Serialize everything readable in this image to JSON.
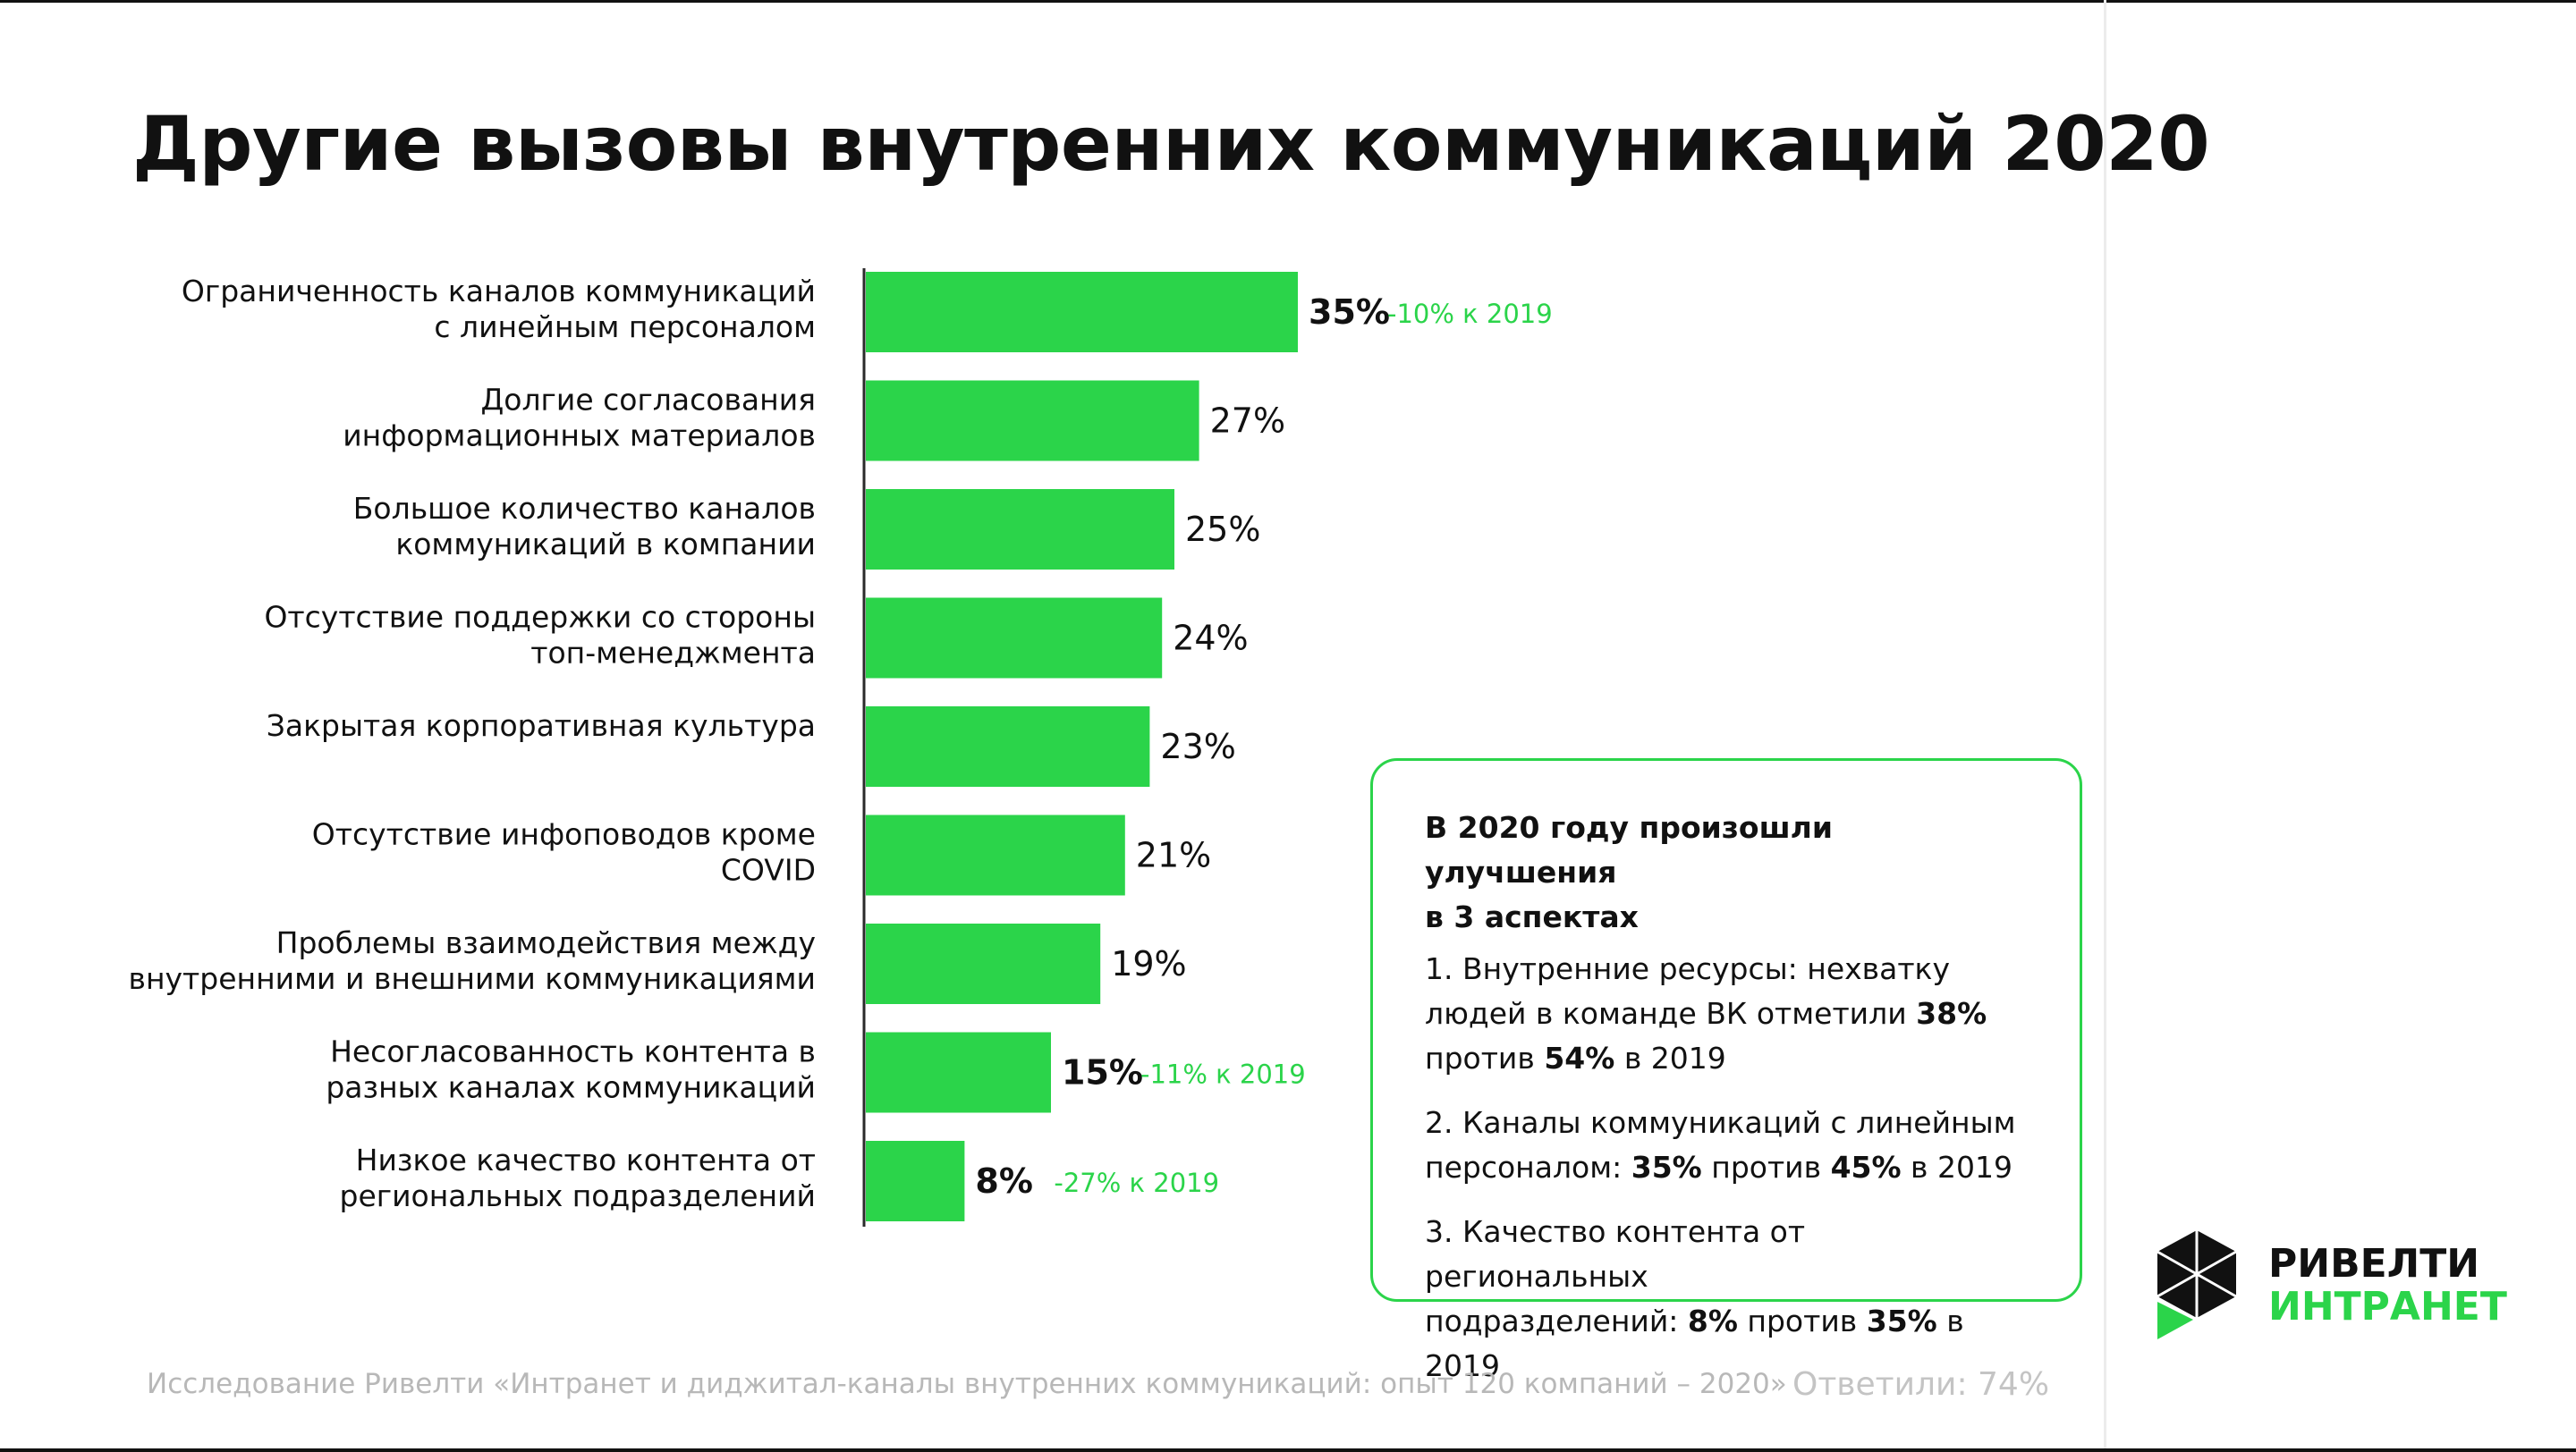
{
  "title": "Другие вызовы внутренних коммуникаций 2020",
  "chart_data": {
    "type": "bar",
    "orientation": "horizontal",
    "categories": [
      [
        "Ограниченность каналов коммуникаций",
        "с линейным персоналом"
      ],
      [
        "Долгие согласования",
        "информационных материалов"
      ],
      [
        "Большое количество каналов",
        "коммуникаций в компании"
      ],
      [
        "Отсутствие поддержки со стороны",
        "топ-менеджмента"
      ],
      [
        "Закрытая корпоративная культура"
      ],
      [
        "Отсутствие инфоповодов кроме",
        "COVID"
      ],
      [
        "Проблемы взаимодействия между",
        "внутренними и внешними коммуникациями"
      ],
      [
        "Несогласованность контента в",
        "разных каналах коммуникаций"
      ],
      [
        "Низкое качество контента от",
        "региональных подразделений"
      ]
    ],
    "values": [
      35,
      27,
      25,
      24,
      23,
      21,
      19,
      15,
      8
    ],
    "value_labels": [
      "35%",
      "27%",
      "25%",
      "24%",
      "23%",
      "21%",
      "19%",
      "15%",
      "8%"
    ],
    "highlighted": [
      true,
      false,
      false,
      false,
      false,
      false,
      false,
      true,
      true
    ],
    "change_labels": [
      "-10% к 2019",
      "",
      "",
      "",
      "",
      "",
      "",
      "-11% к 2019",
      "-27% к 2019"
    ],
    "bar_color": "#2bd44a",
    "change_color": "#2bd44a",
    "grid": false
  },
  "callout": {
    "heading": [
      "В 2020 году произошли улучшения",
      "в 3 аспектах"
    ],
    "item1": {
      "line1": "1. Внутренние ресурсы: нехватку",
      "line2_pre": "людей в команде ВК отметили ",
      "line2_b": "38%",
      "line3_pre": "против ",
      "line3_b": "54%",
      "line3_post": " в 2019"
    },
    "item2": {
      "line1": "2. Каналы коммуникаций с линейным",
      "line2_pre": "персоналом: ",
      "v1": "35%",
      "mid": " против ",
      "v2": "45%",
      "post": " в 2019"
    },
    "item3": {
      "line1": "3. Качество контента от региональных",
      "line2_pre": "подразделений: ",
      "v1": "8%",
      "mid": " против ",
      "v2": "35%",
      "post": " в 2019"
    }
  },
  "footer": {
    "source": "Исследование Ривелти «Интранет и диджитал-каналы внутренних коммуникаций: опыт 120 компаний – 2020»",
    "respondents": "Ответили: 74%"
  },
  "logo": {
    "line1": "РИВЕЛТИ",
    "line2": "ИНТРАНЕТ",
    "accent": "#2bd44a"
  }
}
